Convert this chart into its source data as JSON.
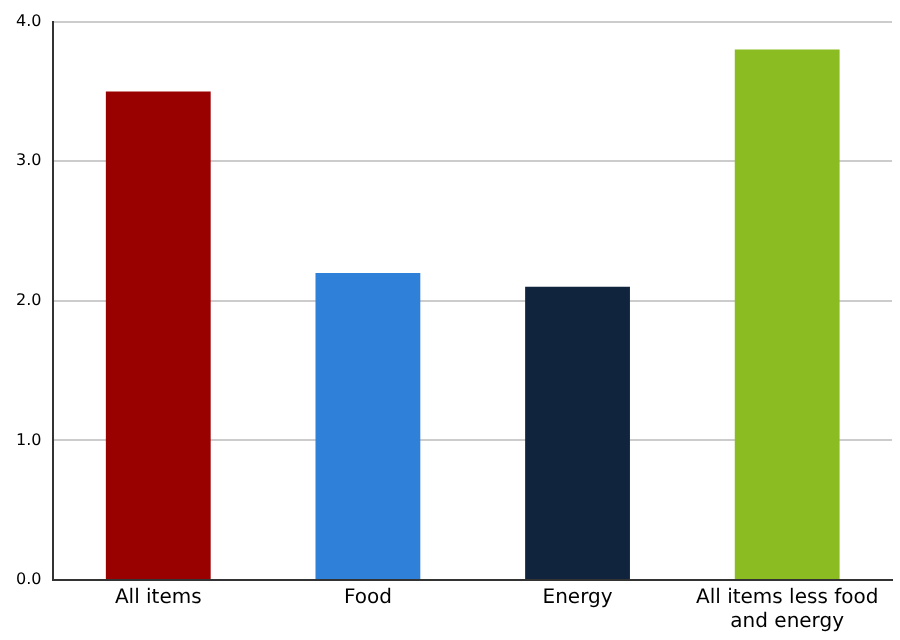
{
  "chart_data": {
    "type": "bar",
    "categories": [
      "All items",
      "Food",
      "Energy",
      "All items less food and energy"
    ],
    "values": [
      3.5,
      2.2,
      2.1,
      3.8
    ],
    "colors": [
      "#990000",
      "#2f80d8",
      "#10243e",
      "#8bbc21"
    ],
    "ylim": [
      0,
      4
    ],
    "yticks": [
      {
        "value": 0,
        "label": "0.0"
      },
      {
        "value": 1,
        "label": "1.0"
      },
      {
        "value": 2,
        "label": "2.0"
      },
      {
        "value": 3,
        "label": "3.0"
      },
      {
        "value": 4,
        "label": "4.0"
      }
    ],
    "grid": "y",
    "legend": false
  }
}
